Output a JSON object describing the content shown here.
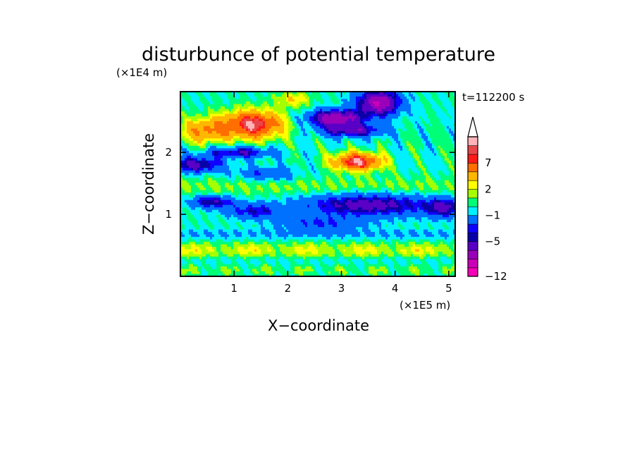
{
  "chart_data": {
    "type": "heatmap",
    "title": "disturbunce of potential temperature",
    "xlabel": "X−coordinate",
    "ylabel": "Z−coordinate",
    "x_unit": "(×1E5 m)",
    "y_unit": "(×1E4 m)",
    "time_label": "t=112200 s",
    "xlim": [
      0,
      5.12
    ],
    "ylim": [
      0,
      2.98
    ],
    "x_ticks": [
      "1",
      "2",
      "3",
      "4",
      "5"
    ],
    "y_ticks": [
      "1",
      "2"
    ],
    "colorbar": {
      "levels": [
        -12,
        -11,
        -9,
        -7,
        -5,
        -4,
        -3,
        -1,
        0,
        1,
        2,
        3,
        5,
        7,
        8,
        9
      ],
      "labels": [
        "−12",
        "−5",
        "−1",
        "2",
        "7"
      ],
      "colors": [
        "#f700b9",
        "#cc00b9",
        "#9b00b9",
        "#5a00c6",
        "#0a00a8",
        "#1000ff",
        "#0070ff",
        "#00f0ff",
        "#00ff77",
        "#a6ff00",
        "#ffff00",
        "#ffb700",
        "#ff6e00",
        "#ff1a1a",
        "#e8474a",
        "#ffb4b8"
      ],
      "extend": "max"
    },
    "features": [
      {
        "x": 1.35,
        "z": 2.45,
        "amp": 9,
        "sx": 0.55,
        "sz": 0.22
      },
      {
        "x": 0.45,
        "z": 2.35,
        "amp": 5,
        "sx": 0.45,
        "sz": 0.2
      },
      {
        "x": 3.3,
        "z": 1.85,
        "amp": 9,
        "sx": 0.45,
        "sz": 0.14
      },
      {
        "x": 2.1,
        "z": 2.85,
        "amp": 3,
        "sx": 0.3,
        "sz": 0.12
      },
      {
        "x": 2.9,
        "z": 2.55,
        "amp": -9,
        "sx": 0.5,
        "sz": 0.13
      },
      {
        "x": 3.7,
        "z": 2.8,
        "amp": -9,
        "sx": 0.4,
        "sz": 0.2
      },
      {
        "x": 3.2,
        "z": 2.35,
        "amp": -6,
        "sx": 0.55,
        "sz": 0.1
      },
      {
        "x": 0.3,
        "z": 1.8,
        "amp": -6,
        "sx": 0.45,
        "sz": 0.12
      },
      {
        "x": 1.1,
        "z": 2.0,
        "amp": -5,
        "sx": 0.6,
        "sz": 0.09
      },
      {
        "x": 1.6,
        "z": 1.65,
        "amp": -3,
        "sx": 0.55,
        "sz": 0.12
      },
      {
        "x": 0.6,
        "z": 1.2,
        "amp": -5,
        "sx": 0.4,
        "sz": 0.1
      },
      {
        "x": 3.5,
        "z": 1.15,
        "amp": -6,
        "sx": 1.2,
        "sz": 0.18
      },
      {
        "x": 1.4,
        "z": 1.05,
        "amp": -4,
        "sx": 0.5,
        "sz": 0.12
      },
      {
        "x": 4.9,
        "z": 1.1,
        "amp": -5,
        "sx": 0.3,
        "sz": 0.15
      },
      {
        "x": 2.6,
        "z": 0.85,
        "amp": -3,
        "sx": 0.8,
        "sz": 0.12
      }
    ]
  }
}
